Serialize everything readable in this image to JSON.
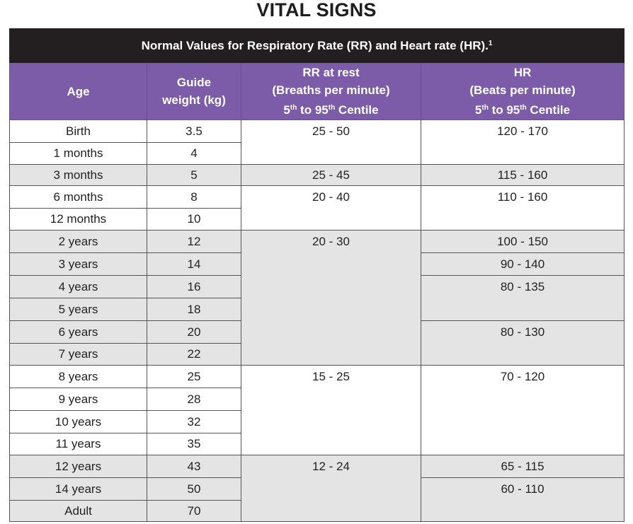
{
  "title": "VITAL SIGNS",
  "banner": {
    "text": "Normal Values for Respiratory Rate (RR) and Heart rate (HR).",
    "footnote": "1"
  },
  "headers": {
    "age": "Age",
    "weight_line1": "Guide",
    "weight_line2": "weight (kg)",
    "rr_line1": "RR at rest",
    "rr_line2": "(Breaths per minute)",
    "hr_line1": "HR",
    "hr_line2": "(Beats per minute)",
    "centile_5": "5",
    "centile_th1": "th",
    "centile_to": " to 95",
    "centile_th2": "th",
    "centile_word": " Centile"
  },
  "rows": [
    {
      "age": "Birth",
      "weight": "3.5"
    },
    {
      "age": "1 months",
      "weight": "4"
    },
    {
      "age": "3 months",
      "weight": "5"
    },
    {
      "age": "6 months",
      "weight": "8"
    },
    {
      "age": "12 months",
      "weight": "10"
    },
    {
      "age": "2 years",
      "weight": "12"
    },
    {
      "age": "3 years",
      "weight": "14"
    },
    {
      "age": "4 years",
      "weight": "16"
    },
    {
      "age": "5 years",
      "weight": "18"
    },
    {
      "age": "6 years",
      "weight": "20"
    },
    {
      "age": "7 years",
      "weight": "22"
    },
    {
      "age": "8 years",
      "weight": "25"
    },
    {
      "age": "9 years",
      "weight": "28"
    },
    {
      "age": "10 years",
      "weight": "32"
    },
    {
      "age": "11 years",
      "weight": "35"
    },
    {
      "age": "12 years",
      "weight": "43"
    },
    {
      "age": "14 years",
      "weight": "50"
    },
    {
      "age": "Adult",
      "weight": "70"
    }
  ],
  "rr_ranges": [
    "25 - 50",
    "25 - 45",
    "20 - 40",
    "20 - 30",
    "15 - 25",
    "12 - 24"
  ],
  "hr_ranges": [
    "120 - 170",
    "115 - 160",
    "110 - 160",
    "100 - 150",
    "90 - 140",
    "80 - 135",
    "80 - 130",
    "70 - 120",
    "65 - 115",
    "60 - 110"
  ],
  "colors": {
    "banner": "#231f20",
    "header": "#7c5ca8",
    "grey_band": "#e4e4e4"
  }
}
